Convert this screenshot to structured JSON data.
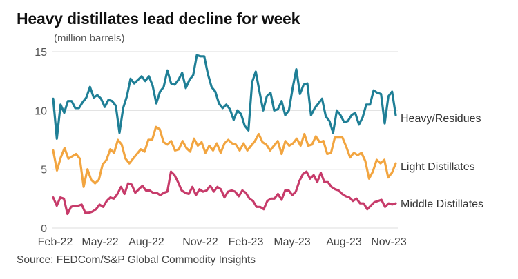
{
  "header": {
    "title": "Heavy distillates lead decline for week",
    "unit_label": "(million barrels)"
  },
  "footer": {
    "source": "Source: FEDCom/S&P Global Commodity Insights"
  },
  "chart_data": {
    "type": "line",
    "title": "Heavy distillates lead decline for week",
    "ylabel": "(million barrels)",
    "xlabel": "",
    "ylim": [
      0,
      15
    ],
    "yticks": [
      0,
      5,
      10,
      15
    ],
    "xtick_labels": [
      "Feb-22",
      "May-22",
      "Aug-22",
      "Nov-22",
      "Feb-23",
      "May-23",
      "Aug-23",
      "Nov-23"
    ],
    "x_period": "weekly",
    "grid": true,
    "legend": "inline-right",
    "series": [
      {
        "name": "Heavy/Residues",
        "color": "#1f7f96",
        "values": [
          11.0,
          7.6,
          10.5,
          9.8,
          10.8,
          10.8,
          10.2,
          10.2,
          10.7,
          11.1,
          12.0,
          11.1,
          11.3,
          11.0,
          10.3,
          10.9,
          10.8,
          10.4,
          8.1,
          10.2,
          11.2,
          12.7,
          12.3,
          12.6,
          12.9,
          12.5,
          12.9,
          12.1,
          10.6,
          11.6,
          12.0,
          13.4,
          12.3,
          12.2,
          12.6,
          13.2,
          11.9,
          12.6,
          13.0,
          14.7,
          14.6,
          14.6,
          13.1,
          12.0,
          11.6,
          10.6,
          10.2,
          10.5,
          10.1,
          9.2,
          10.0,
          9.7,
          8.7,
          8.3,
          12.4,
          13.3,
          11.6,
          10.0,
          11.2,
          11.5,
          10.0,
          10.1,
          10.8,
          9.6,
          10.0,
          11.9,
          13.5,
          11.4,
          12.2,
          12.3,
          9.6,
          10.2,
          10.6,
          11.0,
          9.5,
          9.1,
          8.1,
          10.0,
          9.6,
          9.0,
          9.1,
          9.6,
          9.8,
          8.8,
          9.4,
          10.5,
          10.5,
          11.7,
          11.5,
          11.4,
          8.9,
          11.2,
          11.6,
          9.6
        ]
      },
      {
        "name": "Light Distillates",
        "color": "#f2a540",
        "values": [
          6.6,
          4.9,
          6.0,
          6.8,
          5.9,
          6.1,
          6.3,
          5.9,
          3.5,
          5.0,
          4.1,
          3.8,
          4.1,
          5.4,
          5.8,
          6.7,
          6.4,
          7.5,
          7.1,
          5.9,
          5.5,
          5.9,
          6.3,
          6.7,
          6.5,
          7.5,
          7.5,
          8.6,
          8.4,
          7.3,
          7.1,
          7.4,
          6.6,
          6.7,
          7.4,
          6.8,
          6.5,
          7.6,
          7.0,
          7.3,
          6.4,
          7.0,
          6.6,
          7.2,
          6.4,
          7.2,
          7.5,
          7.2,
          7.1,
          6.6,
          7.2,
          6.6,
          7.0,
          7.4,
          8.0,
          7.3,
          7.1,
          6.6,
          7.0,
          7.4,
          6.3,
          7.4,
          7.0,
          7.2,
          7.6,
          7.0,
          8.0,
          7.0,
          7.1,
          7.8,
          7.3,
          7.4,
          6.3,
          6.4,
          7.7,
          7.7,
          7.7,
          6.9,
          6.0,
          6.4,
          6.2,
          6.4,
          5.7,
          4.2,
          4.8,
          5.8,
          5.5,
          5.8,
          4.3,
          4.7,
          5.5
        ]
      },
      {
        "name": "Middle Distillates",
        "color": "#c73b6a",
        "values": [
          2.6,
          1.9,
          2.6,
          2.5,
          1.2,
          1.8,
          1.9,
          1.9,
          2.0,
          1.3,
          1.3,
          1.4,
          1.6,
          2.0,
          1.8,
          2.3,
          2.6,
          2.5,
          2.9,
          3.5,
          2.9,
          3.8,
          3.7,
          3.0,
          3.3,
          3.6,
          3.2,
          3.2,
          3.0,
          3.0,
          2.8,
          3.0,
          3.1,
          4.8,
          4.5,
          3.9,
          3.2,
          3.0,
          2.9,
          3.5,
          2.8,
          3.3,
          3.1,
          3.2,
          3.6,
          3.1,
          3.5,
          3.3,
          2.6,
          3.1,
          3.2,
          3.1,
          2.7,
          3.2,
          3.0,
          2.5,
          2.3,
          1.8,
          1.8,
          1.6,
          2.3,
          2.5,
          2.5,
          2.9,
          2.4,
          3.2,
          3.2,
          2.8,
          3.1,
          4.0,
          4.6,
          4.8,
          4.2,
          4.5,
          3.9,
          4.7,
          3.9,
          3.9,
          3.5,
          3.3,
          3.2,
          2.9,
          2.7,
          2.6,
          2.3,
          2.5,
          2.1,
          2.1,
          1.6,
          1.9,
          2.2,
          2.3,
          2.4,
          1.8,
          2.1,
          2.0,
          2.1
        ]
      }
    ]
  }
}
